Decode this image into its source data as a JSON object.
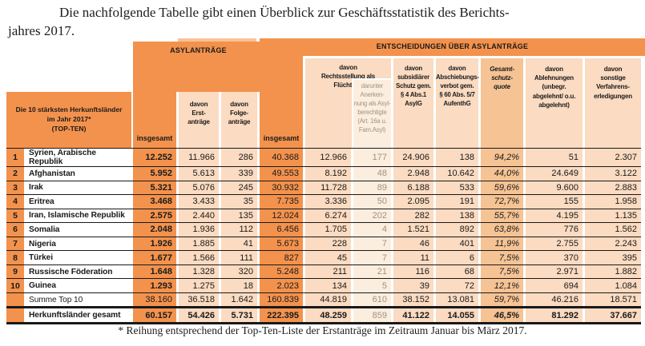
{
  "page": {
    "title_line1": "Die nachfolgende Tabelle gibt einen Überblick zur Geschäftsstatistik des Berichts-",
    "title_line2": "jahres 2017.",
    "footnote": "* Reihung entsprechend der Top-Ten-Liste der Erstanträge im Zeitraum Januar bis März 2017."
  },
  "colors": {
    "orange": "#F3924D",
    "peach": "#FBDBC1",
    "peach_light": "#FCEEDF",
    "peach_medium": "#F6C394",
    "gray_number": "#A09182",
    "line": "#191919"
  },
  "table": {
    "stub_header": "Die 10 stärksten Herkunftsländer\nim Jahr 2017*\n(TOP-TEN)",
    "asyl_group": {
      "title": "ASYLANTRÄGE",
      "insgesamt_label": "insgesamt",
      "col_erstantraege": "davon\nErst-\nanträge",
      "col_folgeantraege": "davon\nFolge-\nanträge"
    },
    "entscheidungen_group": {
      "title": "ENTSCHEIDUNGEN ÜBER ASYLANTRÄGE",
      "insgesamt_label": "insgesamt",
      "col_fluechtling": "davon\nRechtsstellung als\nFlüchtling",
      "col_anerkennung": "darunter\nAnerken-\nnung als Asyl-\nberechtigte\n(Art. 16a u.\nFam.Asyl)",
      "col_subsidiaer": "davon\nsubsidiärer\nSchutz gem.\n§ 4 Abs.1 AsylG",
      "col_abschiebung": "davon\nAbschiebungs-\nverbot gem.\n§ 60 Abs. 5/7\nAufenthG",
      "col_quote": "Gesamt-\nschutz-\nquote",
      "col_ablehnung": "davon\nAblehnungen\n(unbegr.\nabgelehnt/ o.u.\nabgelehnt)",
      "col_sonstige": "davon\nsonstige\nVerfahrens-\nerledigungen"
    },
    "rows": [
      {
        "type": "rank",
        "rank": "1",
        "country": "Syrien, Arabische Republik",
        "values": [
          "12.252",
          "11.966",
          "286",
          "40.368",
          "12.966",
          "177",
          "24.906",
          "138",
          "94,2%",
          "51",
          "2.307"
        ]
      },
      {
        "type": "rank",
        "rank": "2",
        "country": "Afghanistan",
        "values": [
          "5.952",
          "5.613",
          "339",
          "49.553",
          "8.192",
          "48",
          "2.948",
          "10.642",
          "44,0%",
          "24.649",
          "3.122"
        ]
      },
      {
        "type": "rank",
        "rank": "3",
        "country": "Irak",
        "values": [
          "5.321",
          "5.076",
          "245",
          "30.932",
          "11.728",
          "89",
          "6.188",
          "533",
          "59,6%",
          "9.600",
          "2.883"
        ]
      },
      {
        "type": "rank",
        "rank": "4",
        "country": "Eritrea",
        "values": [
          "3.468",
          "3.433",
          "35",
          "7.735",
          "3.336",
          "50",
          "2.095",
          "191",
          "72,7%",
          "155",
          "1.958"
        ]
      },
      {
        "type": "rank",
        "rank": "5",
        "country": "Iran, Islamische Republik",
        "values": [
          "2.575",
          "2.440",
          "135",
          "12.024",
          "6.274",
          "202",
          "282",
          "138",
          "55,7%",
          "4.195",
          "1.135"
        ]
      },
      {
        "type": "rank",
        "rank": "6",
        "country": "Somalia",
        "values": [
          "2.048",
          "1.936",
          "112",
          "6.456",
          "1.705",
          "4",
          "1.521",
          "892",
          "63,8%",
          "776",
          "1.562"
        ]
      },
      {
        "type": "rank",
        "rank": "7",
        "country": "Nigeria",
        "values": [
          "1.926",
          "1.885",
          "41",
          "5.673",
          "228",
          "7",
          "46",
          "401",
          "11,9%",
          "2.755",
          "2.243"
        ]
      },
      {
        "type": "rank",
        "rank": "8",
        "country": "Türkei",
        "values": [
          "1.677",
          "1.566",
          "111",
          "827",
          "45",
          "7",
          "11",
          "6",
          "7,5%",
          "370",
          "395"
        ]
      },
      {
        "type": "rank",
        "rank": "9",
        "country": "Russische Föderation",
        "values": [
          "1.648",
          "1.328",
          "320",
          "5.248",
          "211",
          "21",
          "116",
          "68",
          "7,5%",
          "2.971",
          "1.882"
        ]
      },
      {
        "type": "rank",
        "rank": "10",
        "country": "Guinea",
        "values": [
          "1.293",
          "1.275",
          "18",
          "2.023",
          "134",
          "5",
          "39",
          "72",
          "12,1%",
          "694",
          "1.084"
        ]
      },
      {
        "type": "sum",
        "rank": "",
        "country": "Summe Top 10",
        "values": [
          "38.160",
          "36.518",
          "1.642",
          "160.839",
          "44.819",
          "610",
          "38.152",
          "13.081",
          "59,7%",
          "46.216",
          "18.571"
        ]
      },
      {
        "type": "total",
        "rank": "",
        "country": "Herkunftsländer gesamt",
        "values": [
          "60.157",
          "54.426",
          "5.731",
          "222.395",
          "48.259",
          "859",
          "41.122",
          "14.055",
          "46,5%",
          "81.292",
          "37.667"
        ]
      }
    ]
  }
}
